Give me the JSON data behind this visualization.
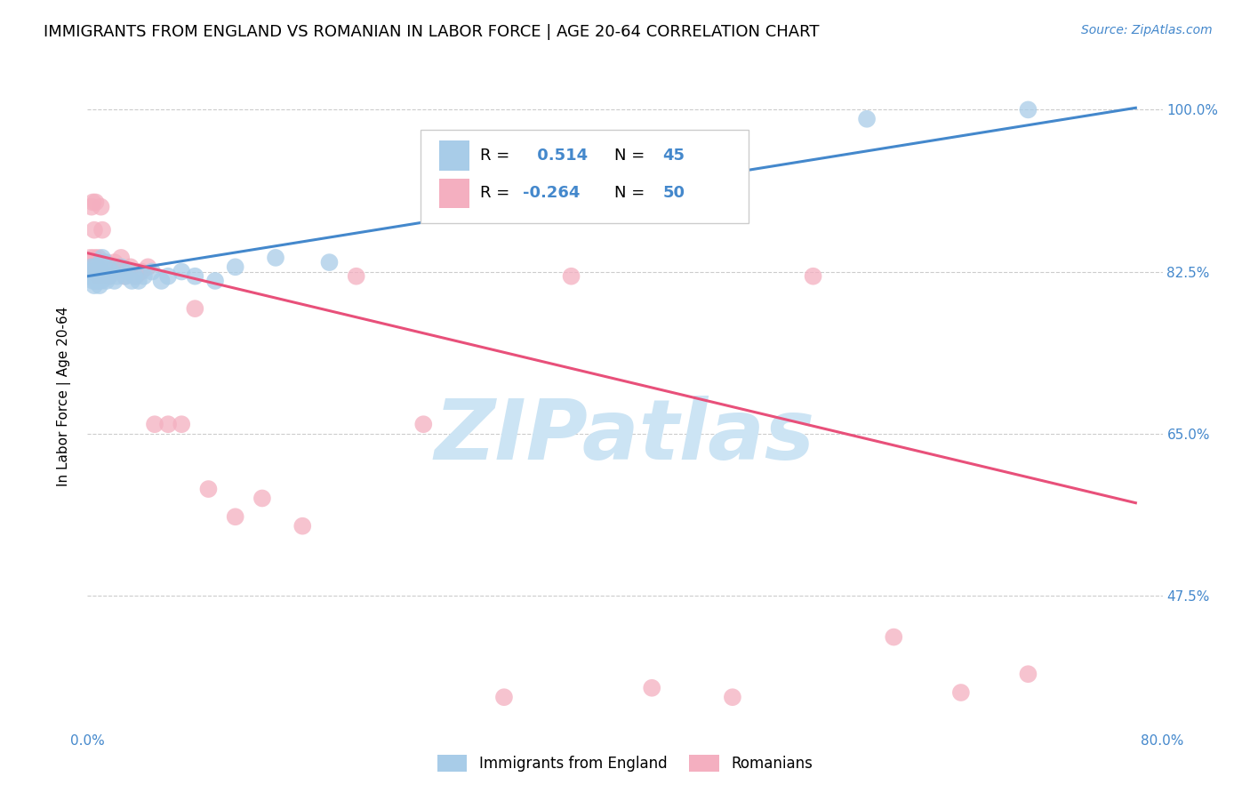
{
  "title": "IMMIGRANTS FROM ENGLAND VS ROMANIAN IN LABOR FORCE | AGE 20-64 CORRELATION CHART",
  "source": "Source: ZipAtlas.com",
  "ylabel": "In Labor Force | Age 20-64",
  "xlim": [
    0.0,
    0.8
  ],
  "ylim": [
    0.33,
    1.05
  ],
  "yticks": [
    0.475,
    0.65,
    0.825,
    1.0
  ],
  "yticklabels": [
    "47.5%",
    "65.0%",
    "82.5%",
    "100.0%"
  ],
  "england_R": 0.514,
  "england_N": 45,
  "romanian_R": -0.264,
  "romanian_N": 50,
  "england_color": "#a8cce8",
  "romanian_color": "#f4afc0",
  "england_line_color": "#4488cc",
  "romanian_line_color": "#e8507a",
  "watermark": "ZIPatlas",
  "watermark_color": "#cce4f4",
  "england_x": [
    0.001,
    0.002,
    0.003,
    0.003,
    0.004,
    0.004,
    0.005,
    0.005,
    0.006,
    0.006,
    0.007,
    0.007,
    0.008,
    0.008,
    0.009,
    0.009,
    0.01,
    0.01,
    0.011,
    0.012,
    0.013,
    0.014,
    0.015,
    0.016,
    0.018,
    0.02,
    0.022,
    0.025,
    0.028,
    0.03,
    0.033,
    0.035,
    0.038,
    0.042,
    0.048,
    0.055,
    0.06,
    0.07,
    0.08,
    0.095,
    0.11,
    0.14,
    0.18,
    0.58,
    0.7
  ],
  "england_y": [
    0.825,
    0.82,
    0.83,
    0.82,
    0.815,
    0.825,
    0.81,
    0.83,
    0.82,
    0.815,
    0.83,
    0.82,
    0.825,
    0.815,
    0.82,
    0.81,
    0.825,
    0.815,
    0.84,
    0.835,
    0.82,
    0.815,
    0.83,
    0.82,
    0.825,
    0.815,
    0.82,
    0.83,
    0.82,
    0.825,
    0.815,
    0.82,
    0.815,
    0.82,
    0.825,
    0.815,
    0.82,
    0.825,
    0.82,
    0.815,
    0.83,
    0.84,
    0.835,
    0.99,
    1.0
  ],
  "romanian_x": [
    0.001,
    0.002,
    0.002,
    0.003,
    0.003,
    0.004,
    0.004,
    0.005,
    0.005,
    0.006,
    0.006,
    0.007,
    0.008,
    0.008,
    0.009,
    0.01,
    0.01,
    0.011,
    0.012,
    0.013,
    0.014,
    0.015,
    0.016,
    0.018,
    0.02,
    0.022,
    0.025,
    0.028,
    0.032,
    0.036,
    0.04,
    0.045,
    0.05,
    0.06,
    0.07,
    0.08,
    0.09,
    0.11,
    0.13,
    0.16,
    0.2,
    0.25,
    0.31,
    0.36,
    0.42,
    0.48,
    0.54,
    0.6,
    0.65,
    0.7
  ],
  "romanian_y": [
    0.83,
    0.835,
    0.84,
    0.825,
    0.895,
    0.9,
    0.83,
    0.84,
    0.87,
    0.83,
    0.9,
    0.835,
    0.82,
    0.84,
    0.83,
    0.895,
    0.825,
    0.87,
    0.83,
    0.825,
    0.835,
    0.83,
    0.82,
    0.83,
    0.835,
    0.83,
    0.84,
    0.82,
    0.83,
    0.82,
    0.825,
    0.83,
    0.66,
    0.66,
    0.66,
    0.785,
    0.59,
    0.56,
    0.58,
    0.55,
    0.82,
    0.66,
    0.365,
    0.82,
    0.375,
    0.365,
    0.82,
    0.43,
    0.37,
    0.39
  ],
  "grid_color": "#cccccc",
  "title_fontsize": 13,
  "axis_label_fontsize": 11,
  "tick_fontsize": 11,
  "source_fontsize": 10,
  "source_color": "#4488cc",
  "tick_color": "#4488cc",
  "legend_england_color": "#a8cce8",
  "legend_romanian_color": "#f4afc0"
}
